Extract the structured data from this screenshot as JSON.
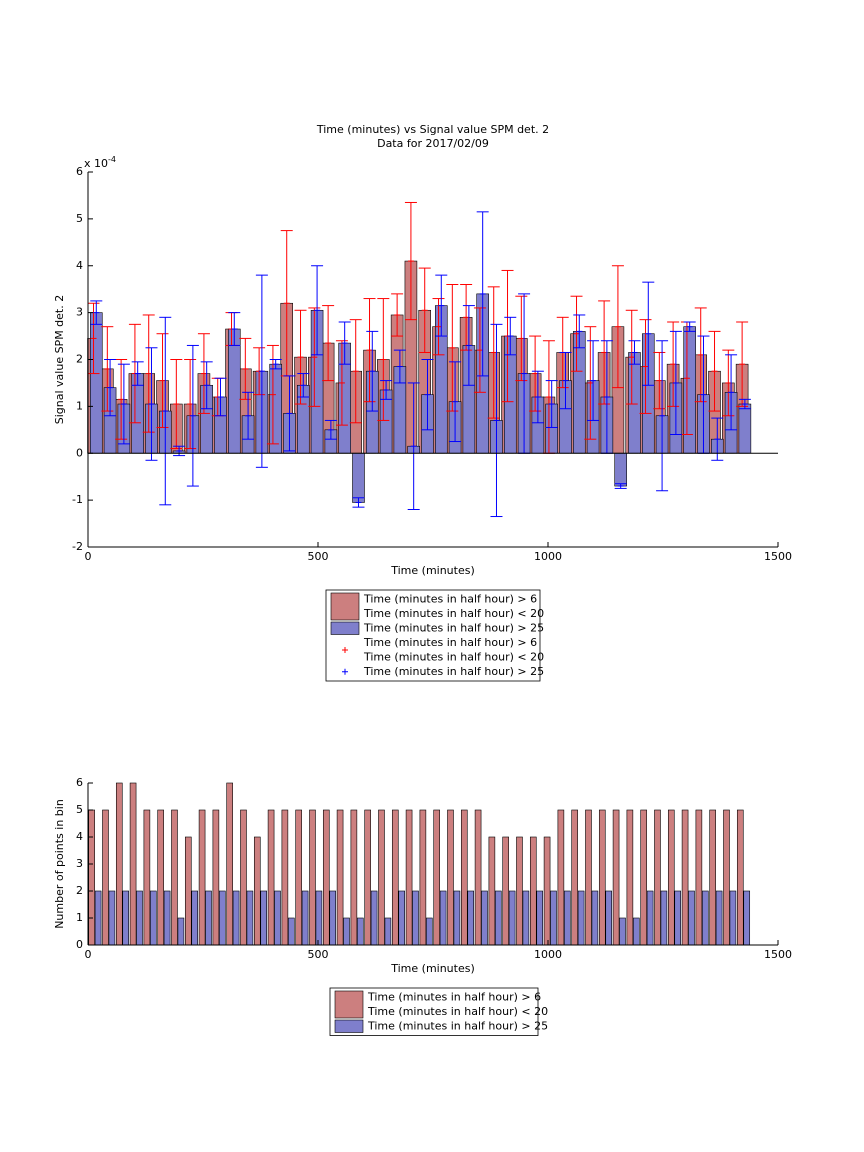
{
  "chart_data": [
    {
      "type": "bar",
      "title": "Time (minutes) vs Signal value SPM det. 2",
      "subtitle": "Data for 2017/02/09",
      "xlabel": "Time (minutes)",
      "ylabel": "Signal value SPM det. 2",
      "y_multiplier_base": "x 10",
      "y_multiplier_exponent": "-4",
      "x": [
        15,
        45,
        75,
        105,
        135,
        165,
        195,
        225,
        255,
        285,
        315,
        345,
        375,
        405,
        435,
        465,
        495,
        525,
        555,
        585,
        615,
        645,
        675,
        705,
        735,
        765,
        795,
        825,
        855,
        885,
        915,
        945,
        975,
        1005,
        1035,
        1065,
        1095,
        1125,
        1155,
        1185,
        1215,
        1245,
        1275,
        1305,
        1335,
        1365,
        1395,
        1425
      ],
      "xlim": [
        0,
        1500
      ],
      "xticks": [
        0,
        500,
        1000,
        1500
      ],
      "ylim": [
        -2,
        6
      ],
      "yticks": [
        -2,
        -1,
        0,
        1,
        2,
        3,
        4,
        5,
        6
      ],
      "series": [
        {
          "name": [
            "Time (minutes in half hour) > 6",
            "Time (minutes in half hour) < 20"
          ],
          "color": "#cc7f7f",
          "error_color": "#ff0000",
          "values": [
            2.45,
            1.8,
            1.15,
            1.7,
            1.7,
            1.55,
            1.05,
            1.05,
            1.7,
            1.2,
            2.65,
            1.8,
            1.75,
            1.25,
            3.2,
            2.05,
            2.05,
            2.35,
            1.5,
            1.75,
            2.2,
            2.0,
            2.95,
            4.1,
            3.05,
            2.7,
            2.25,
            2.9,
            2.2,
            2.15,
            2.5,
            2.45,
            1.7,
            1.2,
            2.15,
            2.55,
            1.5,
            2.15,
            2.7,
            2.05,
            1.85,
            1.55,
            1.9,
            1.6,
            2.1,
            1.75,
            1.5,
            1.9
          ],
          "errors": [
            0.75,
            0.9,
            0.85,
            1.05,
            1.25,
            1.0,
            0.95,
            0.95,
            0.85,
            0.4,
            0.35,
            0.65,
            0.5,
            1.05,
            1.55,
            1.0,
            1.05,
            0.8,
            0.9,
            1.1,
            1.1,
            1.3,
            0.45,
            1.25,
            0.9,
            0.6,
            1.35,
            0.7,
            0.9,
            1.4,
            1.4,
            0.9,
            0.8,
            1.2,
            0.75,
            0.8,
            1.2,
            1.1,
            1.3,
            1.0,
            1.0,
            0.6,
            0.9,
            1.2,
            1.0,
            0.85,
            0.7,
            0.9
          ]
        },
        {
          "name": [
            "Time (minutes in half hour) > 25"
          ],
          "color": "#7f7fcc",
          "error_color": "#0000ff",
          "values": [
            3.0,
            1.4,
            1.05,
            1.7,
            1.05,
            0.9,
            0.05,
            0.8,
            1.45,
            1.2,
            2.65,
            0.8,
            1.75,
            1.9,
            0.85,
            1.45,
            3.05,
            0.5,
            2.35,
            -1.05,
            1.75,
            1.35,
            1.85,
            0.15,
            1.25,
            3.15,
            1.1,
            2.3,
            3.4,
            0.7,
            2.5,
            1.7,
            1.2,
            1.05,
            1.55,
            2.6,
            1.55,
            1.2,
            -0.7,
            2.15,
            2.55,
            0.8,
            1.5,
            2.7,
            1.25,
            0.3,
            1.3,
            1.05
          ],
          "errors": [
            0.25,
            0.6,
            0.85,
            0.25,
            1.2,
            2.0,
            0.1,
            1.5,
            0.5,
            0.4,
            0.35,
            0.5,
            2.05,
            0.1,
            0.8,
            0.25,
            0.95,
            0.2,
            0.45,
            0.1,
            0.85,
            0.2,
            0.35,
            1.35,
            0.75,
            0.65,
            0.85,
            0.85,
            1.75,
            2.05,
            0.4,
            1.7,
            0.55,
            0.5,
            0.6,
            0.35,
            0.85,
            1.2,
            0.05,
            0.25,
            1.1,
            1.6,
            1.1,
            0.1,
            1.25,
            0.45,
            0.8,
            0.1
          ]
        }
      ],
      "error_legend": [
        [
          "Time (minutes in half hour) > 6",
          "Time (minutes in half hour) < 20"
        ],
        [
          "Time (minutes in half hour) > 25"
        ]
      ],
      "legend": "south-outside"
    },
    {
      "type": "bar",
      "xlabel": "Time (minutes)",
      "ylabel": "Number of points in bin",
      "x": [
        15,
        45,
        75,
        105,
        135,
        165,
        195,
        225,
        255,
        285,
        315,
        345,
        375,
        405,
        435,
        465,
        495,
        525,
        555,
        585,
        615,
        645,
        675,
        705,
        735,
        765,
        795,
        825,
        855,
        885,
        915,
        945,
        975,
        1005,
        1035,
        1065,
        1095,
        1125,
        1155,
        1185,
        1215,
        1245,
        1275,
        1305,
        1335,
        1365,
        1395,
        1425
      ],
      "xlim": [
        0,
        1500
      ],
      "xticks": [
        0,
        500,
        1000,
        1500
      ],
      "ylim": [
        0,
        6
      ],
      "yticks": [
        0,
        1,
        2,
        3,
        4,
        5,
        6
      ],
      "series": [
        {
          "name": [
            "Time (minutes in half hour) > 6",
            "Time (minutes in half hour) < 20"
          ],
          "color": "#cc7f7f",
          "values": [
            5,
            5,
            6,
            6,
            5,
            5,
            5,
            4,
            5,
            5,
            6,
            5,
            4,
            5,
            5,
            5,
            5,
            5,
            5,
            5,
            5,
            5,
            5,
            5,
            5,
            5,
            5,
            5,
            5,
            4,
            4,
            4,
            4,
            4,
            5,
            5,
            5,
            5,
            5,
            5,
            5,
            5,
            5,
            5,
            5,
            5,
            5,
            5
          ]
        },
        {
          "name": [
            "Time (minutes in half hour) > 25"
          ],
          "color": "#7f7fcc",
          "values": [
            2,
            2,
            2,
            2,
            2,
            2,
            1,
            2,
            2,
            2,
            2,
            2,
            2,
            2,
            1,
            2,
            2,
            2,
            1,
            1,
            2,
            1,
            2,
            2,
            1,
            2,
            2,
            2,
            2,
            2,
            2,
            2,
            2,
            2,
            2,
            2,
            2,
            2,
            1,
            1,
            2,
            2,
            2,
            2,
            2,
            2,
            2,
            2
          ]
        }
      ],
      "legend": "south-outside"
    }
  ]
}
